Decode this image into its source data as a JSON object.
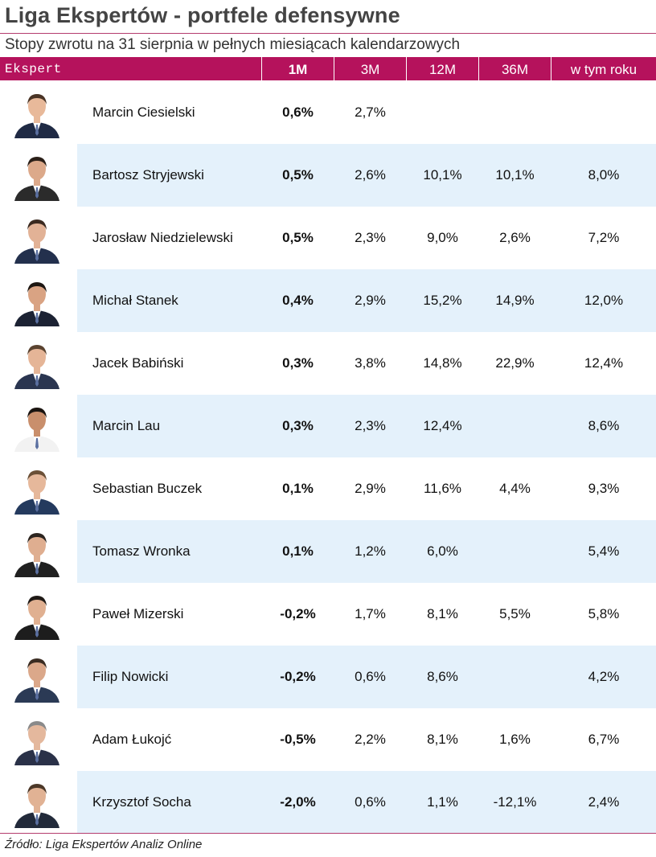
{
  "title": "Liga Ekspertów - portfele defensywne",
  "subtitle": "Stopy zwrotu na 31 sierpnia w pełnych miesiącach kalendarzowych",
  "header": {
    "ekspert": "Ekspert",
    "m1": "1M",
    "m3": "3M",
    "m12": "12M",
    "m36": "36M",
    "ytd": "w tym roku"
  },
  "colors": {
    "accent": "#b5125c",
    "row_shade": "#e4f1fb"
  },
  "rows": [
    {
      "name": "Marcin Ciesielski",
      "m1": "0,6%",
      "m3": "2,7%",
      "m12": "",
      "m36": "",
      "ytd": ""
    },
    {
      "name": "Bartosz Stryjewski",
      "m1": "0,5%",
      "m3": "2,6%",
      "m12": "10,1%",
      "m36": "10,1%",
      "ytd": "8,0%"
    },
    {
      "name": "Jarosław Niedzielewski",
      "m1": "0,5%",
      "m3": "2,3%",
      "m12": "9,0%",
      "m36": "2,6%",
      "ytd": "7,2%"
    },
    {
      "name": "Michał Stanek",
      "m1": "0,4%",
      "m3": "2,9%",
      "m12": "15,2%",
      "m36": "14,9%",
      "ytd": "12,0%"
    },
    {
      "name": "Jacek Babiński",
      "m1": "0,3%",
      "m3": "3,8%",
      "m12": "14,8%",
      "m36": "22,9%",
      "ytd": "12,4%"
    },
    {
      "name": "Marcin Lau",
      "m1": "0,3%",
      "m3": "2,3%",
      "m12": "12,4%",
      "m36": "",
      "ytd": "8,6%"
    },
    {
      "name": "Sebastian Buczek",
      "m1": "0,1%",
      "m3": "2,9%",
      "m12": "11,6%",
      "m36": "4,4%",
      "ytd": "9,3%"
    },
    {
      "name": "Tomasz Wronka",
      "m1": "0,1%",
      "m3": "1,2%",
      "m12": "6,0%",
      "m36": "",
      "ytd": "5,4%"
    },
    {
      "name": "Paweł Mizerski",
      "m1": "-0,2%",
      "m3": "1,7%",
      "m12": "8,1%",
      "m36": "5,5%",
      "ytd": "5,8%"
    },
    {
      "name": "Filip Nowicki",
      "m1": "-0,2%",
      "m3": "0,6%",
      "m12": "8,6%",
      "m36": "",
      "ytd": "4,2%"
    },
    {
      "name": "Adam Łukojć",
      "m1": "-0,5%",
      "m3": "2,2%",
      "m12": "8,1%",
      "m36": "1,6%",
      "ytd": "6,7%"
    },
    {
      "name": "Krzysztof Socha",
      "m1": "-2,0%",
      "m3": "0,6%",
      "m12": "1,1%",
      "m36": "-12,1%",
      "ytd": "2,4%"
    }
  ],
  "source": "Źródło: Liga Ekspertów Analiz Online"
}
